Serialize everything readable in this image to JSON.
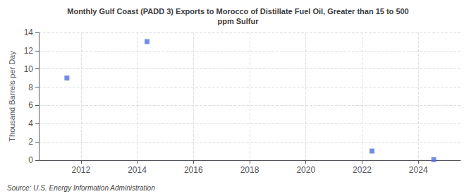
{
  "chart_data": {
    "type": "scatter",
    "title": "Monthly Gulf Coast (PADD 3) Exports to Morocco of Distillate Fuel Oil, Greater than 15 to 500\nppm Sulfur",
    "ylabel": "Thousand Barrels per Day",
    "annotations": [
      "Source: U.S. Energy Information Administration"
    ],
    "x": [
      2011.5,
      2014.35,
      2022.35,
      2024.55
    ],
    "values": [
      9.0,
      13.0,
      1.0,
      0.05
    ],
    "xlim": [
      2010.5,
      2025.5
    ],
    "ylim": [
      0,
      14
    ],
    "xticks": [
      2012,
      2014,
      2016,
      2018,
      2020,
      2022,
      2024
    ],
    "yticks": [
      0,
      2,
      4,
      6,
      8,
      10,
      12,
      14
    ],
    "grid": true,
    "marker": "square"
  }
}
